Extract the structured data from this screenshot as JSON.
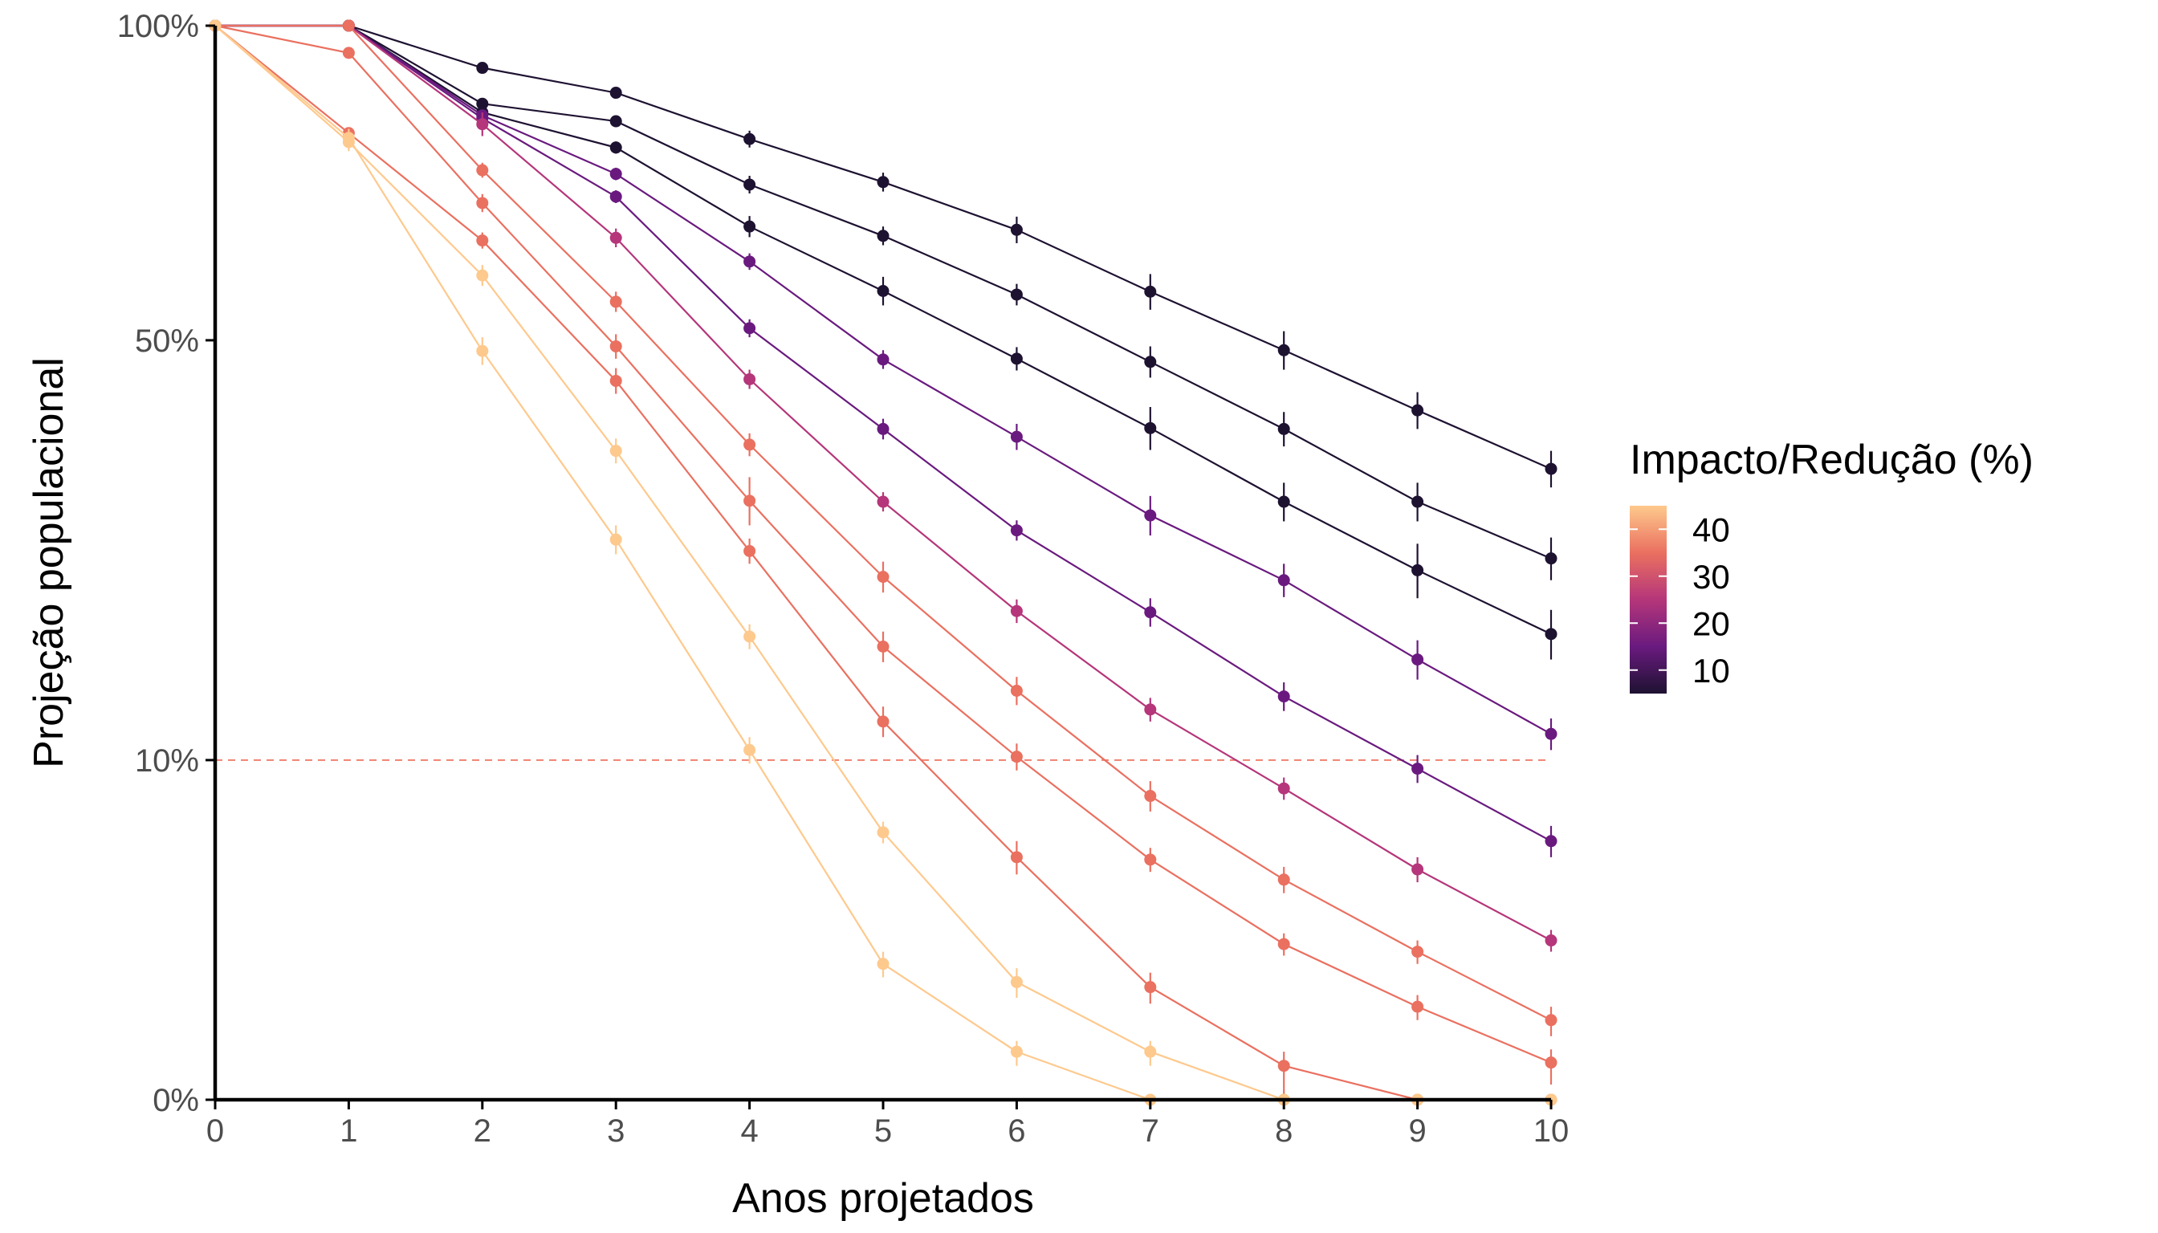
{
  "chart_data": {
    "type": "line",
    "xlabel": "Anos projetados",
    "ylabel": "Projeção populacional",
    "x": [
      0,
      1,
      2,
      3,
      4,
      5,
      6,
      7,
      8,
      9,
      10
    ],
    "x_ticks": [
      "0",
      "1",
      "2",
      "3",
      "4",
      "5",
      "6",
      "7",
      "8",
      "9",
      "10"
    ],
    "xlim": [
      0,
      10
    ],
    "ylim": [
      0,
      100
    ],
    "y_scale": "square-root",
    "y_ticks": [
      {
        "value": 0,
        "label": "0%"
      },
      {
        "value": 10,
        "label": "10%"
      },
      {
        "value": 50,
        "label": "50%"
      },
      {
        "value": 100,
        "label": "100%"
      }
    ],
    "reference_line": {
      "y": 10,
      "style": "dashed",
      "color": "#f08070"
    },
    "grid": false,
    "error_bars": true,
    "legend": {
      "title": "Impacto/Redução (%)",
      "placement": "right",
      "type": "colorbar",
      "labels": [
        "40",
        "30",
        "20",
        "10"
      ],
      "range": [
        5,
        45
      ],
      "colors": [
        "#1e1231",
        "#6a1a7f",
        "#b5367a",
        "#ea7060",
        "#fec98d"
      ]
    },
    "series": [
      {
        "impact": 5,
        "color": "#1e1231",
        "values": [
          100,
          100,
          92.3,
          87.9,
          80.0,
          73.0,
          65.6,
          56.6,
          48.7,
          41.2,
          34.5
        ],
        "err": [
          0,
          0,
          1.0,
          1.0,
          1.4,
          1.5,
          2.0,
          2.5,
          2.5,
          2.2,
          2.0
        ]
      },
      {
        "impact": 10,
        "color": "#1e1231",
        "values": [
          100,
          100,
          86.0,
          83.0,
          72.6,
          64.7,
          56.2,
          47.2,
          39.0,
          31.0,
          25.4
        ],
        "err": [
          0,
          0,
          1.0,
          1.0,
          1.4,
          1.4,
          1.5,
          2.0,
          2.0,
          2.0,
          2.0
        ]
      },
      {
        "impact": 15,
        "color": "#1e1231",
        "values": [
          100,
          100,
          84.5,
          78.6,
          66.1,
          56.7,
          47.6,
          39.1,
          31.0,
          24.3,
          18.8
        ],
        "err": [
          0,
          0,
          1.0,
          1.0,
          1.6,
          2.0,
          1.5,
          2.5,
          2.0,
          2.5,
          2.0
        ]
      },
      {
        "impact": 20,
        "color": "#6a1a7f",
        "values": [
          100,
          100,
          84.0,
          74.3,
          60.9,
          47.5,
          38.1,
          29.6,
          23.4,
          16.8,
          11.6
        ],
        "err": [
          0,
          0,
          1.0,
          1.0,
          1.2,
          1.2,
          1.5,
          2.0,
          1.5,
          1.5,
          1.0
        ]
      },
      {
        "impact": 25,
        "color": "#6a1a7f",
        "values": [
          100,
          100,
          83.5,
          70.7,
          51.6,
          39.0,
          28.1,
          20.6,
          14.1,
          9.5,
          5.8
        ],
        "err": [
          0,
          0,
          1.0,
          1.0,
          1.2,
          1.2,
          1.0,
          1.2,
          1.0,
          0.8,
          0.7
        ]
      },
      {
        "impact": 30,
        "color": "#b5367a",
        "values": [
          100,
          100,
          82.5,
          64.4,
          45.0,
          31.0,
          20.7,
          13.2,
          8.4,
          4.6,
          2.2
        ],
        "err": [
          0,
          0,
          2.0,
          1.4,
          1.2,
          1.0,
          1.0,
          0.8,
          0.6,
          0.5,
          0.3
        ]
      },
      {
        "impact": 35,
        "color": "#ea7060",
        "values": [
          100,
          100,
          74.9,
          55.2,
          37.2,
          23.7,
          14.5,
          8.0,
          4.2,
          1.9,
          0.55
        ],
        "err": [
          0,
          0,
          1.2,
          1.4,
          1.3,
          1.4,
          1.0,
          0.8,
          0.5,
          0.3,
          0.2
        ]
      },
      {
        "impact": 40,
        "color": "#ea7060",
        "values": [
          100,
          95.0,
          69.7,
          49.2,
          31.1,
          17.8,
          10.2,
          5.0,
          2.1,
          0.75,
          0.12
        ],
        "err": [
          0,
          0.8,
          1.4,
          1.6,
          2.5,
          1.2,
          0.8,
          0.5,
          0.3,
          0.2,
          0.1
        ]
      },
      {
        "impact": 40,
        "color": "#ea7060",
        "values": [
          100,
          81.0,
          64.0,
          44.8,
          26.1,
          12.4,
          5.1,
          1.1,
          0.1,
          0.0,
          0.0
        ],
        "err": [
          0,
          0.7,
          1.2,
          1.6,
          1.2,
          1.0,
          0.7,
          0.3,
          0.1,
          0,
          0
        ]
      },
      {
        "impact": 45,
        "color": "#fec98d",
        "values": [
          100,
          79.5,
          58.9,
          36.5,
          18.6,
          6.2,
          1.2,
          0.2,
          0.0,
          0.0,
          0.0
        ],
        "err": [
          0,
          1.5,
          1.5,
          1.4,
          1.0,
          0.5,
          0.3,
          0.1,
          0,
          0,
          0
        ]
      },
      {
        "impact": 45,
        "color": "#fec98d",
        "values": [
          100,
          80.2,
          48.6,
          27.2,
          10.6,
          1.6,
          0.2,
          0.0,
          0.0,
          0.0,
          0.0
        ],
        "err": [
          0,
          1.5,
          1.8,
          1.4,
          0.8,
          0.3,
          0.1,
          0,
          0,
          0,
          0
        ]
      }
    ]
  }
}
